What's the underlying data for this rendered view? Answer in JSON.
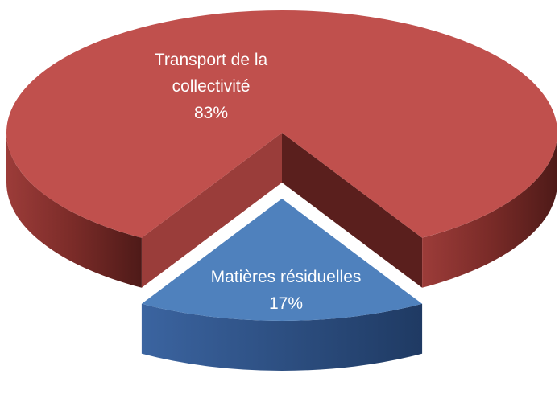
{
  "chart_data": {
    "type": "pie",
    "categories": [
      "Transport de la collectivité",
      "Matières résiduelles"
    ],
    "values": [
      83,
      17
    ],
    "value_labels": [
      "83%",
      "17%"
    ],
    "colors": [
      "#c0504d",
      "#4f81bd"
    ]
  }
}
